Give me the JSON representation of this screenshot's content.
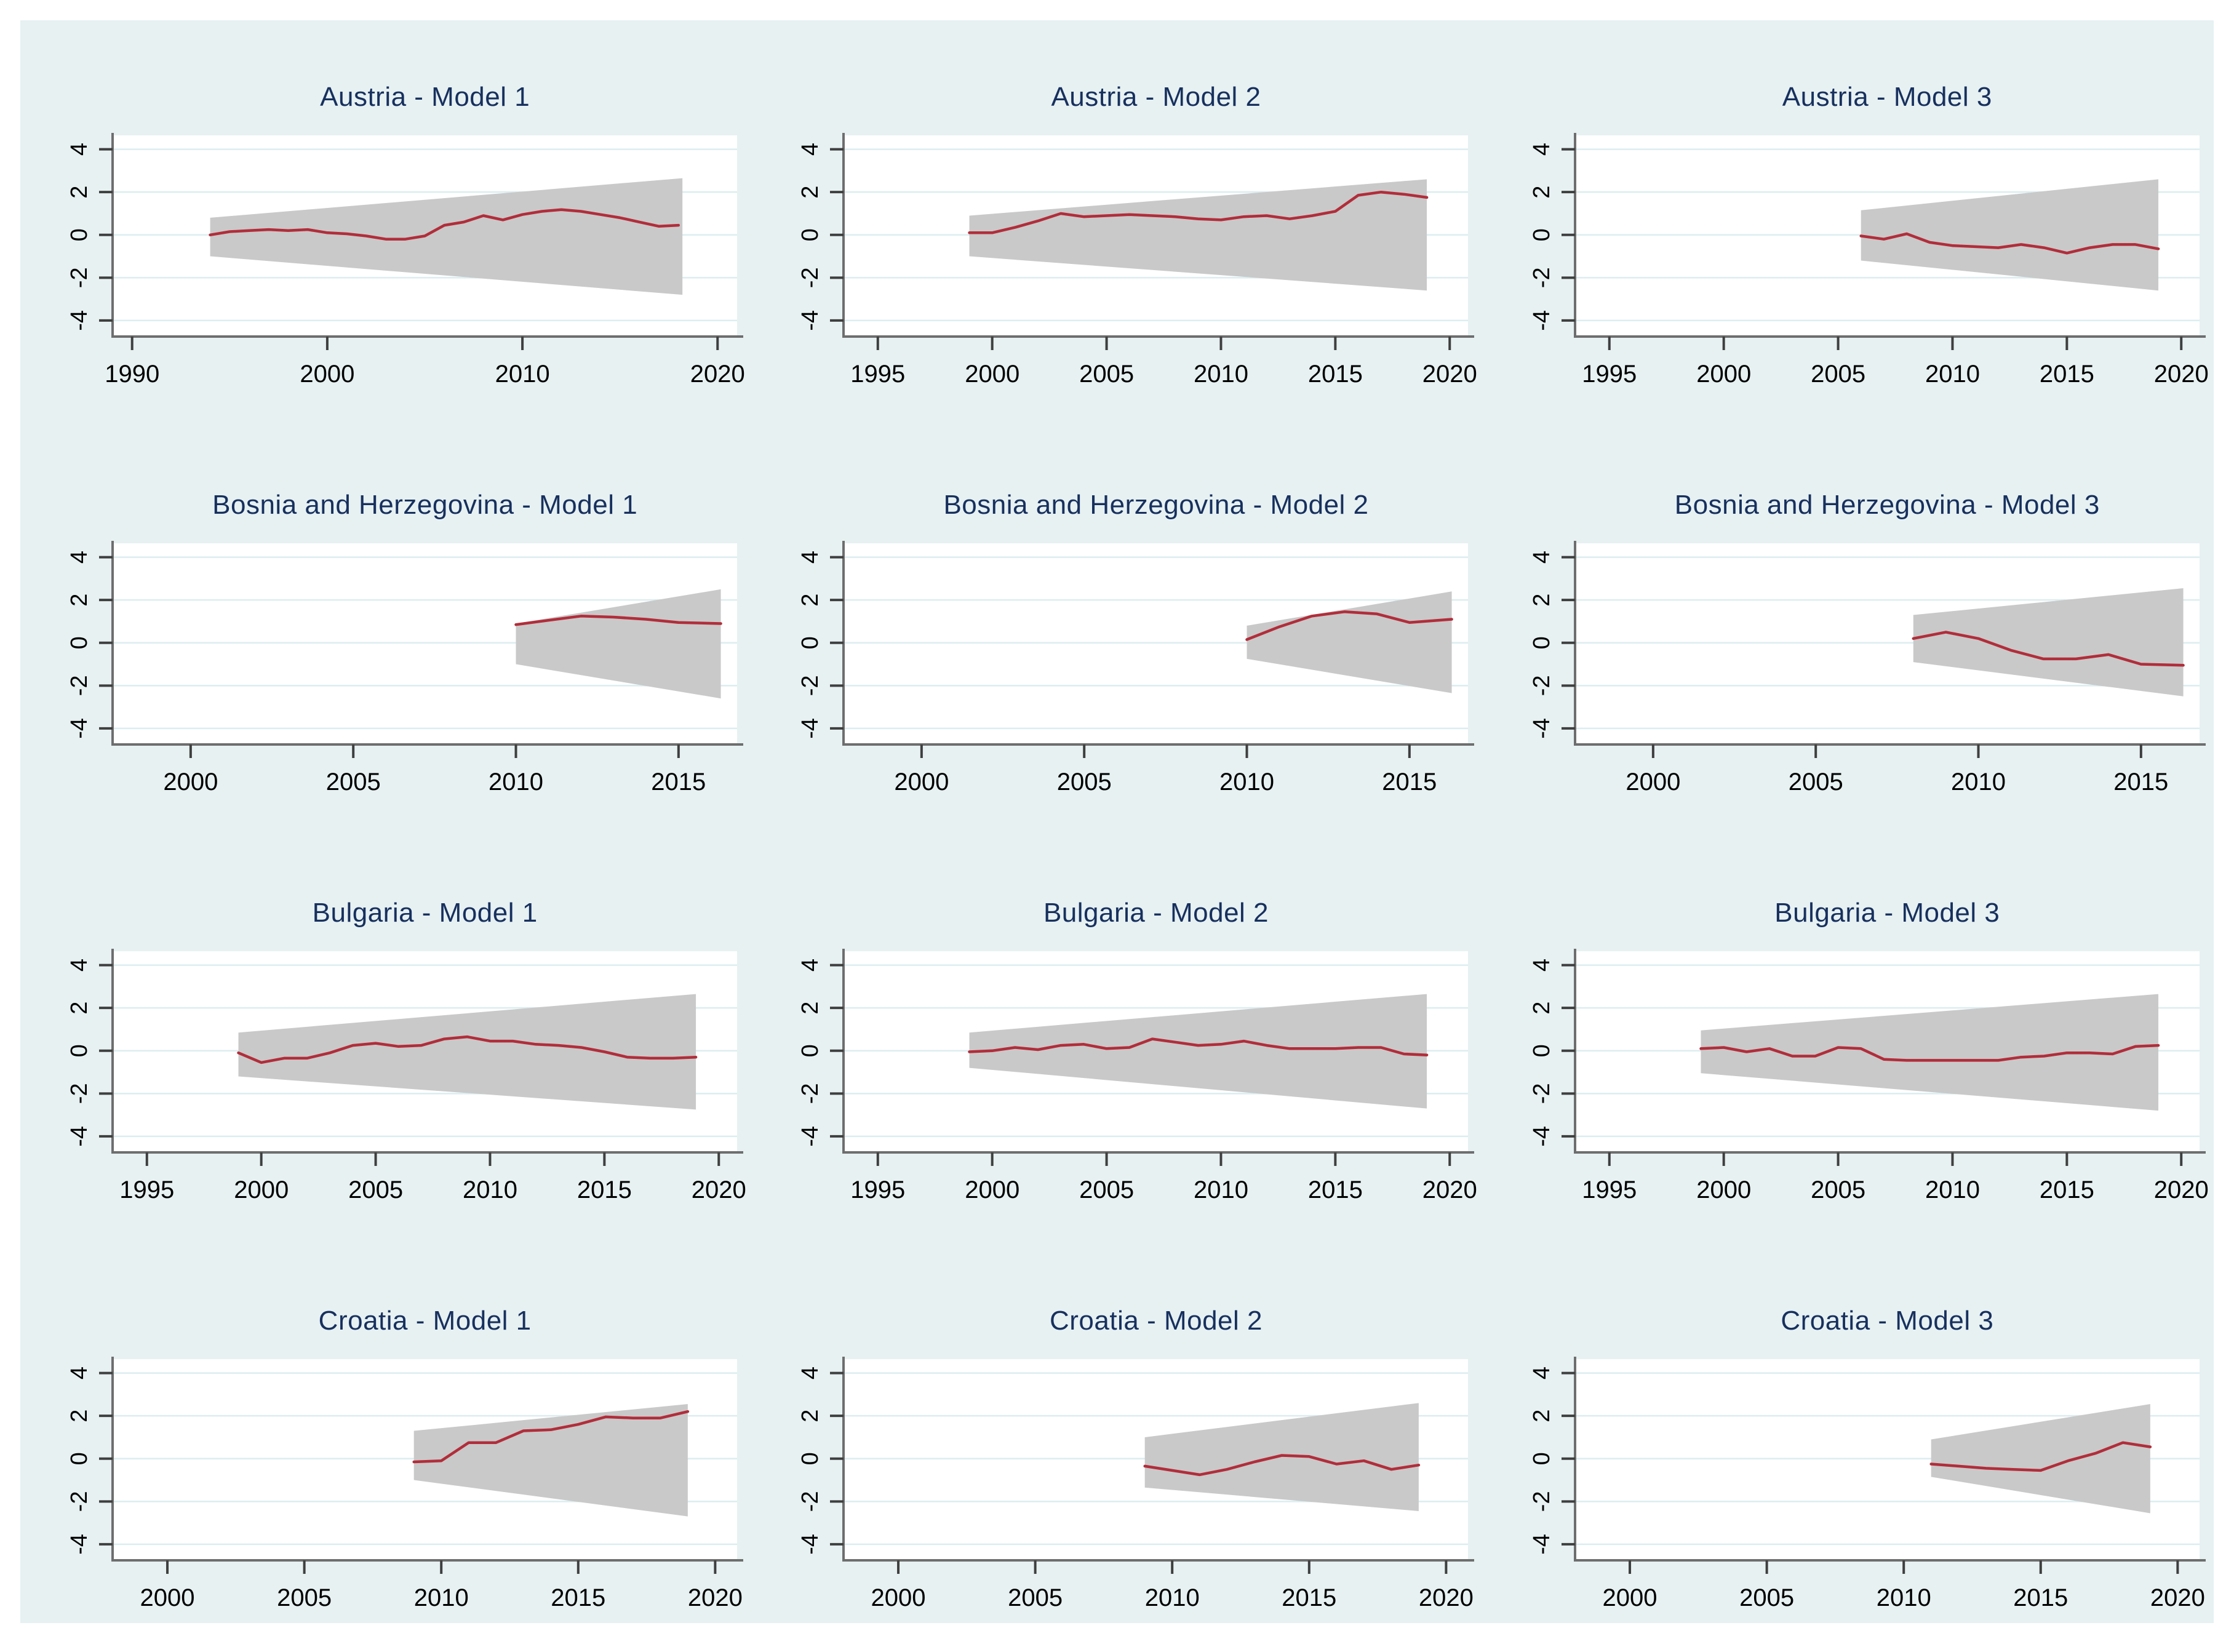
{
  "style": {
    "canvas_bg": "#e7f1f2",
    "plot_bg": "#ffffff",
    "gridline": "#dcedf0",
    "axis": "#6e6e6e",
    "tick": "#3f3f3f",
    "tick_label": "#000000",
    "title_color": "#17305e",
    "line_color": "#b22d3a",
    "band_color": "#c9c9c9"
  },
  "chart_data": [
    {
      "type": "line",
      "title": "Austria - Model 1",
      "xlim": [
        1989,
        2021
      ],
      "xticks": [
        1990,
        2000,
        2010,
        2020
      ],
      "ylim": [
        -4.75,
        4.65
      ],
      "yticks": [
        4,
        2,
        0,
        -2,
        -4
      ],
      "band": {
        "x": [
          1994,
          2018.2
        ],
        "upper": [
          0.8,
          2.65
        ],
        "lower": [
          -1.0,
          -2.8
        ]
      },
      "line": {
        "x": [
          1994,
          1995,
          1996,
          1997,
          1998,
          1999,
          2000,
          2001,
          2002,
          2003,
          2004,
          2005,
          2006,
          2007,
          2008,
          2009,
          2010,
          2011,
          2012,
          2013,
          2014,
          2015,
          2016,
          2017,
          2018
        ],
        "y": [
          0.0,
          0.15,
          0.2,
          0.25,
          0.2,
          0.25,
          0.1,
          0.05,
          -0.05,
          -0.2,
          -0.2,
          -0.05,
          0.45,
          0.6,
          0.9,
          0.7,
          0.95,
          1.1,
          1.18,
          1.1,
          0.95,
          0.8,
          0.6,
          0.4,
          0.45
        ]
      }
    },
    {
      "type": "line",
      "title": "Austria - Model 2",
      "xlim": [
        1993.5,
        2020.8
      ],
      "xticks": [
        1995,
        2000,
        2005,
        2010,
        2015,
        2020
      ],
      "ylim": [
        -4.75,
        4.65
      ],
      "yticks": [
        4,
        2,
        0,
        -2,
        -4
      ],
      "band": {
        "x": [
          1999,
          2019
        ],
        "upper": [
          0.9,
          2.6
        ],
        "lower": [
          -1.0,
          -2.6
        ]
      },
      "line": {
        "x": [
          1999,
          2000,
          2001,
          2002,
          2003,
          2004,
          2005,
          2006,
          2007,
          2008,
          2009,
          2010,
          2011,
          2012,
          2013,
          2014,
          2015,
          2016,
          2017,
          2018,
          2019
        ],
        "y": [
          0.1,
          0.1,
          0.35,
          0.65,
          1.0,
          0.85,
          0.9,
          0.95,
          0.9,
          0.85,
          0.75,
          0.7,
          0.85,
          0.9,
          0.75,
          0.9,
          1.1,
          1.85,
          2.0,
          1.9,
          1.75
        ]
      }
    },
    {
      "type": "line",
      "title": "Austria - Model 3",
      "xlim": [
        1993.5,
        2020.8
      ],
      "xticks": [
        1995,
        2000,
        2005,
        2010,
        2015,
        2020
      ],
      "ylim": [
        -4.75,
        4.65
      ],
      "yticks": [
        4,
        2,
        0,
        -2,
        -4
      ],
      "band": {
        "x": [
          2006,
          2019
        ],
        "upper": [
          1.15,
          2.6
        ],
        "lower": [
          -1.2,
          -2.6
        ]
      },
      "line": {
        "x": [
          2006,
          2007,
          2008,
          2009,
          2010,
          2011,
          2012,
          2013,
          2014,
          2015,
          2016,
          2017,
          2018,
          2019
        ],
        "y": [
          -0.05,
          -0.2,
          0.05,
          -0.35,
          -0.5,
          -0.55,
          -0.6,
          -0.45,
          -0.6,
          -0.85,
          -0.6,
          -0.45,
          -0.45,
          -0.65
        ]
      }
    },
    {
      "type": "line",
      "title": "Bosnia and Herzegovina - Model 1",
      "xlim": [
        1997.6,
        2016.8
      ],
      "xticks": [
        2000,
        2005,
        2010,
        2015
      ],
      "ylim": [
        -4.75,
        4.65
      ],
      "yticks": [
        4,
        2,
        0,
        -2,
        -4
      ],
      "band": {
        "x": [
          2010,
          2016.3
        ],
        "upper": [
          0.9,
          2.5
        ],
        "lower": [
          -1.0,
          -2.6
        ]
      },
      "line": {
        "x": [
          2010,
          2011,
          2012,
          2013,
          2014,
          2015,
          2016.3
        ],
        "y": [
          0.85,
          1.05,
          1.25,
          1.2,
          1.1,
          0.95,
          0.9
        ]
      }
    },
    {
      "type": "line",
      "title": "Bosnia and Herzegovina - Model 2",
      "xlim": [
        1997.6,
        2016.8
      ],
      "xticks": [
        2000,
        2005,
        2010,
        2015
      ],
      "ylim": [
        -4.75,
        4.65
      ],
      "yticks": [
        4,
        2,
        0,
        -2,
        -4
      ],
      "band": {
        "x": [
          2010,
          2016.3
        ],
        "upper": [
          0.8,
          2.4
        ],
        "lower": [
          -0.75,
          -2.35
        ]
      },
      "line": {
        "x": [
          2010,
          2011,
          2012,
          2013,
          2014,
          2015,
          2016.3
        ],
        "y": [
          0.15,
          0.75,
          1.25,
          1.45,
          1.35,
          0.95,
          1.1
        ]
      }
    },
    {
      "type": "line",
      "title": "Bosnia and Herzegovina - Model 3",
      "xlim": [
        1997.6,
        2016.8
      ],
      "xticks": [
        2000,
        2005,
        2010,
        2015
      ],
      "ylim": [
        -4.75,
        4.65
      ],
      "yticks": [
        4,
        2,
        0,
        -2,
        -4
      ],
      "band": {
        "x": [
          2008,
          2016.3
        ],
        "upper": [
          1.3,
          2.55
        ],
        "lower": [
          -0.9,
          -2.5
        ]
      },
      "line": {
        "x": [
          2008,
          2009,
          2010,
          2011,
          2012,
          2013,
          2014,
          2015,
          2016.3
        ],
        "y": [
          0.2,
          0.5,
          0.2,
          -0.35,
          -0.75,
          -0.75,
          -0.55,
          -1.0,
          -1.05
        ]
      }
    },
    {
      "type": "line",
      "title": "Bulgaria - Model 1",
      "xlim": [
        1993.5,
        2020.8
      ],
      "xticks": [
        1995,
        2000,
        2005,
        2010,
        2015,
        2020
      ],
      "ylim": [
        -4.75,
        4.65
      ],
      "yticks": [
        4,
        2,
        0,
        -2,
        -4
      ],
      "band": {
        "x": [
          1999,
          2019
        ],
        "upper": [
          0.85,
          2.65
        ],
        "lower": [
          -1.2,
          -2.75
        ]
      },
      "line": {
        "x": [
          1999,
          2000,
          2001,
          2002,
          2003,
          2004,
          2005,
          2006,
          2007,
          2008,
          2009,
          2010,
          2011,
          2012,
          2013,
          2014,
          2015,
          2016,
          2017,
          2018,
          2019
        ],
        "y": [
          -0.1,
          -0.55,
          -0.35,
          -0.35,
          -0.1,
          0.25,
          0.35,
          0.2,
          0.25,
          0.55,
          0.65,
          0.45,
          0.45,
          0.3,
          0.25,
          0.15,
          -0.05,
          -0.3,
          -0.35,
          -0.35,
          -0.3
        ]
      }
    },
    {
      "type": "line",
      "title": "Bulgaria - Model 2",
      "xlim": [
        1993.5,
        2020.8
      ],
      "xticks": [
        1995,
        2000,
        2005,
        2010,
        2015,
        2020
      ],
      "ylim": [
        -4.75,
        4.65
      ],
      "yticks": [
        4,
        2,
        0,
        -2,
        -4
      ],
      "band": {
        "x": [
          1999,
          2019
        ],
        "upper": [
          0.85,
          2.65
        ],
        "lower": [
          -0.8,
          -2.7
        ]
      },
      "line": {
        "x": [
          1999,
          2000,
          2001,
          2002,
          2003,
          2004,
          2005,
          2006,
          2007,
          2008,
          2009,
          2010,
          2011,
          2012,
          2013,
          2014,
          2015,
          2016,
          2017,
          2018,
          2019
        ],
        "y": [
          -0.05,
          0.0,
          0.15,
          0.05,
          0.25,
          0.3,
          0.1,
          0.15,
          0.55,
          0.4,
          0.25,
          0.3,
          0.45,
          0.25,
          0.1,
          0.1,
          0.1,
          0.15,
          0.15,
          -0.15,
          -0.2
        ]
      }
    },
    {
      "type": "line",
      "title": "Bulgaria - Model 3",
      "xlim": [
        1993.5,
        2020.8
      ],
      "xticks": [
        1995,
        2000,
        2005,
        2010,
        2015,
        2020
      ],
      "ylim": [
        -4.75,
        4.65
      ],
      "yticks": [
        4,
        2,
        0,
        -2,
        -4
      ],
      "band": {
        "x": [
          1999,
          2019
        ],
        "upper": [
          0.95,
          2.65
        ],
        "lower": [
          -1.05,
          -2.8
        ]
      },
      "line": {
        "x": [
          1999,
          2000,
          2001,
          2002,
          2003,
          2004,
          2005,
          2006,
          2007,
          2008,
          2009,
          2010,
          2011,
          2012,
          2013,
          2014,
          2015,
          2016,
          2017,
          2018,
          2019
        ],
        "y": [
          0.1,
          0.15,
          -0.05,
          0.1,
          -0.25,
          -0.25,
          0.15,
          0.1,
          -0.4,
          -0.45,
          -0.45,
          -0.45,
          -0.45,
          -0.45,
          -0.3,
          -0.25,
          -0.1,
          -0.1,
          -0.15,
          0.2,
          0.25
        ]
      }
    },
    {
      "type": "line",
      "title": "Croatia - Model 1",
      "xlim": [
        1998,
        2020.8
      ],
      "xticks": [
        2000,
        2005,
        2010,
        2015,
        2020
      ],
      "ylim": [
        -4.75,
        4.65
      ],
      "yticks": [
        4,
        2,
        0,
        -2,
        -4
      ],
      "band": {
        "x": [
          2009,
          2019
        ],
        "upper": [
          1.3,
          2.55
        ],
        "lower": [
          -1.0,
          -2.7
        ]
      },
      "line": {
        "x": [
          2009,
          2010,
          2011,
          2012,
          2013,
          2014,
          2015,
          2016,
          2017,
          2018,
          2019
        ],
        "y": [
          -0.15,
          -0.1,
          0.75,
          0.75,
          1.3,
          1.35,
          1.6,
          1.95,
          1.9,
          1.9,
          2.2
        ]
      }
    },
    {
      "type": "line",
      "title": "Croatia - Model 2",
      "xlim": [
        1998,
        2020.8
      ],
      "xticks": [
        2000,
        2005,
        2010,
        2015,
        2020
      ],
      "ylim": [
        -4.75,
        4.65
      ],
      "yticks": [
        4,
        2,
        0,
        -2,
        -4
      ],
      "band": {
        "x": [
          2009,
          2019
        ],
        "upper": [
          1.0,
          2.6
        ],
        "lower": [
          -1.35,
          -2.45
        ]
      },
      "line": {
        "x": [
          2009,
          2010,
          2011,
          2012,
          2013,
          2014,
          2015,
          2016,
          2017,
          2018,
          2019
        ],
        "y": [
          -0.35,
          -0.55,
          -0.75,
          -0.5,
          -0.15,
          0.15,
          0.1,
          -0.25,
          -0.1,
          -0.5,
          -0.3
        ]
      }
    },
    {
      "type": "line",
      "title": "Croatia - Model 3",
      "xlim": [
        1998,
        2020.8
      ],
      "xticks": [
        2000,
        2005,
        2010,
        2015,
        2020
      ],
      "ylim": [
        -4.75,
        4.65
      ],
      "yticks": [
        4,
        2,
        0,
        -2,
        -4
      ],
      "band": {
        "x": [
          2011,
          2019
        ],
        "upper": [
          0.9,
          2.55
        ],
        "lower": [
          -0.85,
          -2.55
        ]
      },
      "line": {
        "x": [
          2011,
          2012,
          2013,
          2014,
          2015,
          2016,
          2017,
          2018,
          2019
        ],
        "y": [
          -0.25,
          -0.35,
          -0.45,
          -0.5,
          -0.55,
          -0.1,
          0.25,
          0.75,
          0.55
        ]
      }
    }
  ]
}
